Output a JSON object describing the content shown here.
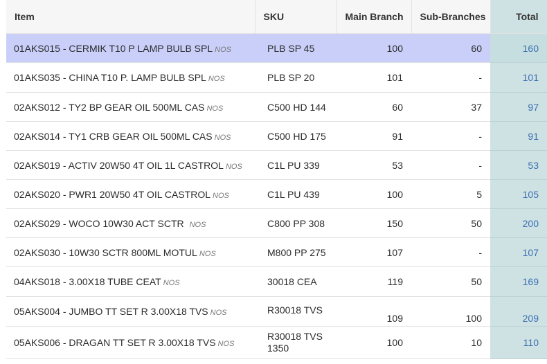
{
  "headers": {
    "item": "Item",
    "sku": "SKU",
    "main_branch": "Main Branch",
    "sub_branches": "Sub-Branches",
    "total": "Total"
  },
  "rows": [
    {
      "item": "01AKS015 - CERMIK T10 P LAMP BULB SPL",
      "tag": "NOS",
      "sku": "PLB SP 45",
      "main": "100",
      "sub": "60",
      "total": "160"
    },
    {
      "item": "01AKS035 - CHINA T10 P. LAMP BULB SPL",
      "tag": "NOS",
      "sku": "PLB SP 20",
      "main": "101",
      "sub": "-",
      "total": "101"
    },
    {
      "item": "02AKS012 - TY2 BP GEAR OIL 500ML CAS",
      "tag": "NOS",
      "sku": "C500 HD 144",
      "main": "60",
      "sub": "37",
      "total": "97"
    },
    {
      "item": "02AKS014 - TY1 CRB GEAR OIL 500ML CAS",
      "tag": "NOS",
      "sku": "C500 HD 175",
      "main": "91",
      "sub": "-",
      "total": "91"
    },
    {
      "item": "02AKS019 - ACTIV 20W50 4T OIL 1L CASTROL",
      "tag": "NOS",
      "sku": "C1L PU 339",
      "main": "53",
      "sub": "-",
      "total": "53"
    },
    {
      "item": "02AKS020 - PWR1 20W50 4T OIL CASTROL",
      "tag": "NOS",
      "sku": "C1L PU 439",
      "main": "100",
      "sub": "5",
      "total": "105"
    },
    {
      "item": "02AKS029 - WOCO 10W30 ACT SCTR",
      "tag": "NOS",
      "sku": "C800 PP 308",
      "main": "150",
      "sub": "50",
      "total": "200"
    },
    {
      "item": "02AKS030 - 10W30 SCTR 800ML MOTUL",
      "tag": "NOS",
      "sku": "M800 PP 275",
      "main": "107",
      "sub": "-",
      "total": "107"
    },
    {
      "item": "04AKS018 - 3.00X18 TUBE CEAT",
      "tag": "NOS",
      "sku": "30018 CEA",
      "main": "119",
      "sub": "50",
      "total": "169"
    },
    {
      "item": "05AKS004 - JUMBO TT SET R 3.00X18 TVS",
      "tag": "NOS",
      "sku": "R30018 TVS",
      "main": "109",
      "sub": "100",
      "total": "209"
    },
    {
      "item": "05AKS006 - DRAGAN TT SET R 3.00X18 TVS",
      "tag": "NOS",
      "sku": "R30018 TVS 1350",
      "main": "100",
      "sub": "10",
      "total": "110"
    }
  ]
}
